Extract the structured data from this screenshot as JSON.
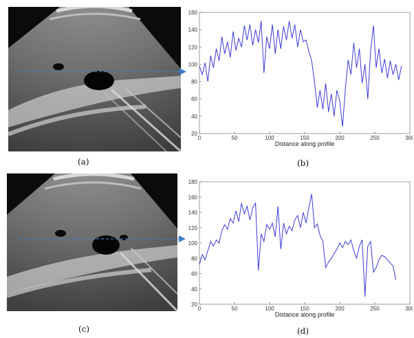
{
  "captions": {
    "a": "(a)",
    "b": "(b)",
    "c": "(c)",
    "d": "(d)"
  },
  "chart_data": [
    {
      "type": "line",
      "xlabel": "Distance along profile",
      "ylabel": "",
      "xlim": [
        0,
        300
      ],
      "ylim": [
        20,
        160
      ],
      "x_ticks": [
        0,
        50,
        100,
        150,
        200,
        250,
        300
      ],
      "y_ticks": [
        20,
        40,
        60,
        80,
        100,
        120,
        140,
        160
      ],
      "color": "#3a3ad8",
      "series": [
        {
          "values": [
            [
              0,
              98
            ],
            [
              4,
              88
            ],
            [
              8,
              102
            ],
            [
              12,
              80
            ],
            [
              16,
              110
            ],
            [
              20,
              96
            ],
            [
              24,
              118
            ],
            [
              28,
              104
            ],
            [
              32,
              132
            ],
            [
              36,
              112
            ],
            [
              40,
              126
            ],
            [
              44,
              108
            ],
            [
              48,
              138
            ],
            [
              52,
              116
            ],
            [
              56,
              130
            ],
            [
              60,
              120
            ],
            [
              64,
              145
            ],
            [
              68,
              128
            ],
            [
              72,
              146
            ],
            [
              76,
              122
            ],
            [
              80,
              140
            ],
            [
              84,
              125
            ],
            [
              88,
              150
            ],
            [
              92,
              90
            ],
            [
              96,
              132
            ],
            [
              100,
              118
            ],
            [
              104,
              146
            ],
            [
              108,
              112
            ],
            [
              112,
              140
            ],
            [
              116,
              118
            ],
            [
              120,
              144
            ],
            [
              124,
              128
            ],
            [
              128,
              150
            ],
            [
              132,
              130
            ],
            [
              136,
              146
            ],
            [
              140,
              120
            ],
            [
              144,
              140
            ],
            [
              148,
              126
            ],
            [
              152,
              128
            ],
            [
              156,
              115
            ],
            [
              160,
              104
            ],
            [
              164,
              80
            ],
            [
              168,
              50
            ],
            [
              172,
              70
            ],
            [
              176,
              48
            ],
            [
              180,
              78
            ],
            [
              184,
              45
            ],
            [
              188,
              66
            ],
            [
              192,
              40
            ],
            [
              196,
              70
            ],
            [
              200,
              58
            ],
            [
              204,
              28
            ],
            [
              208,
              72
            ],
            [
              212,
              105
            ],
            [
              216,
              88
            ],
            [
              220,
              125
            ],
            [
              224,
              96
            ],
            [
              228,
              118
            ],
            [
              232,
              78
            ],
            [
              236,
              100
            ],
            [
              240,
              60
            ],
            [
              244,
              115
            ],
            [
              248,
              145
            ],
            [
              252,
              96
            ],
            [
              256,
              118
            ],
            [
              260,
              90
            ],
            [
              264,
              106
            ],
            [
              268,
              84
            ],
            [
              272,
              104
            ],
            [
              276,
              88
            ],
            [
              280,
              100
            ],
            [
              284,
              82
            ],
            [
              288,
              98
            ]
          ]
        }
      ]
    },
    {
      "type": "line",
      "xlabel": "Distance along profile",
      "ylabel": "",
      "xlim": [
        0,
        300
      ],
      "ylim": [
        20,
        180
      ],
      "x_ticks": [
        0,
        50,
        100,
        150,
        200,
        250,
        300
      ],
      "y_ticks": [
        20,
        40,
        60,
        80,
        100,
        120,
        140,
        160,
        180
      ],
      "color": "#3a3ad8",
      "series": [
        {
          "values": [
            [
              0,
              72
            ],
            [
              4,
              85
            ],
            [
              8,
              78
            ],
            [
              12,
              90
            ],
            [
              16,
              102
            ],
            [
              20,
              96
            ],
            [
              24,
              104
            ],
            [
              28,
              100
            ],
            [
              32,
              116
            ],
            [
              36,
              124
            ],
            [
              40,
              118
            ],
            [
              44,
              132
            ],
            [
              48,
              126
            ],
            [
              52,
              142
            ],
            [
              56,
              128
            ],
            [
              60,
              152
            ],
            [
              64,
              138
            ],
            [
              68,
              148
            ],
            [
              72,
              130
            ],
            [
              76,
              146
            ],
            [
              80,
              152
            ],
            [
              84,
              64
            ],
            [
              88,
              112
            ],
            [
              92,
              102
            ],
            [
              96,
              124
            ],
            [
              100,
              118
            ],
            [
              104,
              126
            ],
            [
              108,
              108
            ],
            [
              112,
              148
            ],
            [
              116,
              92
            ],
            [
              120,
              126
            ],
            [
              124,
              112
            ],
            [
              128,
              122
            ],
            [
              132,
              116
            ],
            [
              136,
              130
            ],
            [
              140,
              136
            ],
            [
              144,
              120
            ],
            [
              148,
              140
            ],
            [
              152,
              126
            ],
            [
              156,
              146
            ],
            [
              160,
              164
            ],
            [
              164,
              120
            ],
            [
              168,
              125
            ],
            [
              172,
              110
            ],
            [
              176,
              102
            ],
            [
              180,
              68
            ],
            [
              184,
              75
            ],
            [
              188,
              80
            ],
            [
              192,
              86
            ],
            [
              196,
              92
            ],
            [
              200,
              100
            ],
            [
              204,
              94
            ],
            [
              208,
              102
            ],
            [
              212,
              98
            ],
            [
              216,
              104
            ],
            [
              220,
              90
            ],
            [
              224,
              80
            ],
            [
              228,
              96
            ],
            [
              232,
              104
            ],
            [
              236,
              30
            ],
            [
              240,
              96
            ],
            [
              244,
              102
            ],
            [
              248,
              62
            ],
            [
              252,
              68
            ],
            [
              256,
              78
            ],
            [
              260,
              84
            ],
            [
              264,
              82
            ],
            [
              268,
              78
            ],
            [
              272,
              74
            ],
            [
              276,
              70
            ],
            [
              280,
              52
            ]
          ]
        }
      ]
    }
  ]
}
